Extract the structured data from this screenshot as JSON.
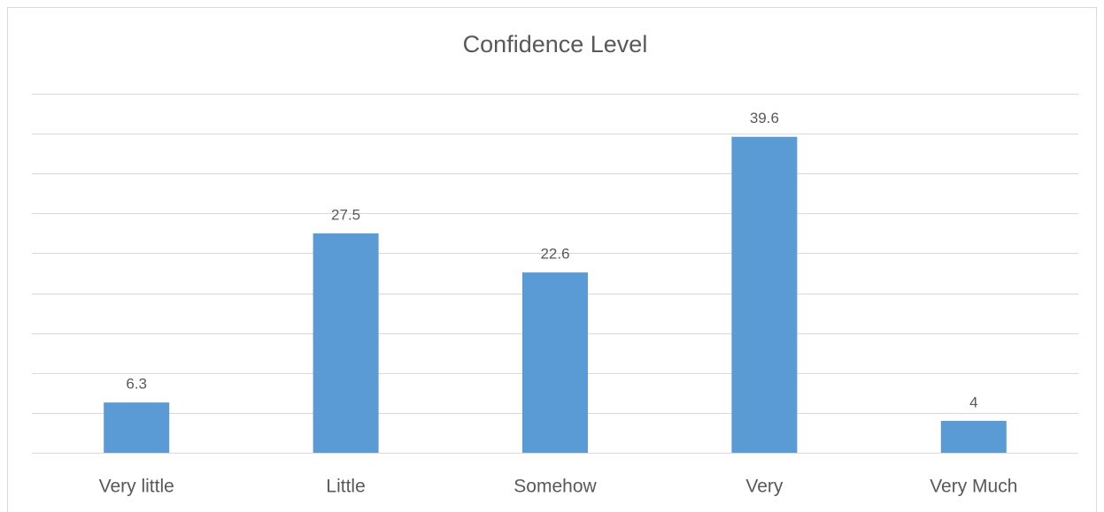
{
  "chart_data": {
    "type": "bar",
    "title": "Confidence Level",
    "categories": [
      "Very little",
      "Little",
      "Somehow",
      "Very",
      "Very Much"
    ],
    "values": [
      6.3,
      27.5,
      22.6,
      39.6,
      4
    ],
    "color": "#5b9bd5",
    "ylim": [
      0,
      45
    ],
    "yticks": [
      0,
      5,
      10,
      15,
      20,
      25,
      30,
      35,
      40,
      45
    ],
    "grid": true
  }
}
